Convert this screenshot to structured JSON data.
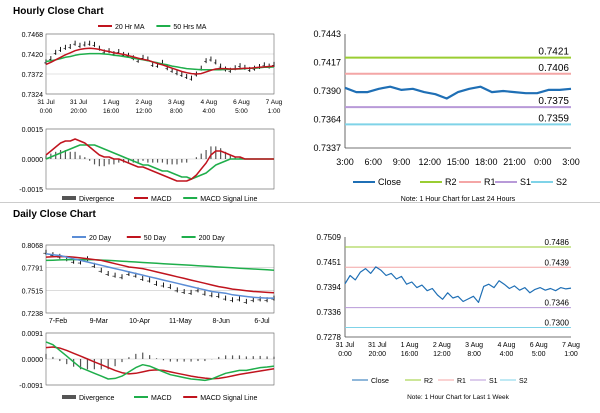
{
  "hourly": {
    "title": "Hourly Close Chart",
    "price_panel": {
      "legend": [
        "20 Hr MA",
        "50 Hrs MA"
      ],
      "y_ticks": [
        "0.7468",
        "0.7420",
        "0.7372",
        "0.7324"
      ],
      "ylim": [
        0.7324,
        0.7468
      ],
      "x_ticks": [
        [
          "31 Jul",
          "0:00"
        ],
        [
          "31 Jul",
          "20:00"
        ],
        [
          "1 Aug",
          "16:00"
        ],
        [
          "2 Aug",
          "12:00"
        ],
        [
          "3 Aug",
          "8:00"
        ],
        [
          "4 Aug",
          "4:00"
        ],
        [
          "6 Aug",
          "5:00"
        ],
        [
          "7 Aug",
          "1:00"
        ]
      ],
      "series": {
        "close": [
          0.7401,
          0.7409,
          0.7424,
          0.7431,
          0.7436,
          0.7438,
          0.7446,
          0.7441,
          0.7444,
          0.7446,
          0.7443,
          0.7434,
          0.7425,
          0.7428,
          0.7421,
          0.7426,
          0.7419,
          0.7417,
          0.7411,
          0.7405,
          0.7412,
          0.7408,
          0.7395,
          0.7393,
          0.74,
          0.7387,
          0.7381,
          0.7375,
          0.7371,
          0.7366,
          0.7362,
          0.7372,
          0.7386,
          0.7404,
          0.7408,
          0.7401,
          0.7391,
          0.7384,
          0.7381,
          0.7387,
          0.7392,
          0.7388,
          0.7383,
          0.7386,
          0.739,
          0.7394,
          0.7391,
          0.7395
        ],
        "ma20": [
          0.7395,
          0.74,
          0.7406,
          0.7412,
          0.7418,
          0.7423,
          0.7428,
          0.7431,
          0.7433,
          0.7434,
          0.7433,
          0.7431,
          0.7428,
          0.7426,
          0.7423,
          0.7421,
          0.7419,
          0.7416,
          0.7413,
          0.741,
          0.7407,
          0.7405,
          0.7401,
          0.7397,
          0.7394,
          0.739,
          0.7386,
          0.7382,
          0.7378,
          0.7375,
          0.7373,
          0.7372,
          0.7373,
          0.7377,
          0.7381,
          0.7384,
          0.7385,
          0.7385,
          0.7384,
          0.7384,
          0.7385,
          0.7386,
          0.7386,
          0.7387,
          0.7388,
          0.7389,
          0.739,
          0.7391
        ],
        "ma50": [
          0.7402,
          0.7404,
          0.7406,
          0.7409,
          0.7412,
          0.7414,
          0.7417,
          0.7419,
          0.742,
          0.7421,
          0.7421,
          0.7421,
          0.742,
          0.7419,
          0.7417,
          0.7416,
          0.7414,
          0.7412,
          0.741,
          0.7408,
          0.7406,
          0.7404,
          0.7401,
          0.7399,
          0.7396,
          0.7394,
          0.7391,
          0.7389,
          0.7387,
          0.7385,
          0.7384,
          0.7383,
          0.7382,
          0.7382,
          0.7382,
          0.7382,
          0.7382,
          0.7383,
          0.7383,
          0.7384,
          0.7384,
          0.7385,
          0.7386,
          0.7386,
          0.7387,
          0.7388,
          0.7388,
          0.7389
        ]
      }
    },
    "macd_panel": {
      "y_ticks": [
        "0.0015",
        "0.0000",
        "-0.0015"
      ],
      "ylim": [
        -0.0015,
        0.0015
      ],
      "legend": [
        "Divergence",
        "MACD",
        "MACD Signal Line"
      ],
      "series": {
        "macd": [
          0.0002,
          0.0004,
          0.0006,
          0.0008,
          0.0009,
          0.0009,
          0.001,
          0.0009,
          0.0008,
          0.0006,
          0.0004,
          0.0002,
          0.0001,
          0.0001,
          0.0,
          0.0,
          -0.0001,
          -0.0002,
          -0.0003,
          -0.0004,
          -0.0004,
          -0.0005,
          -0.0006,
          -0.0007,
          -0.0008,
          -0.0009,
          -0.001,
          -0.0011,
          -0.0011,
          -0.0011,
          -0.001,
          -0.0008,
          -0.0005,
          -0.0002,
          0.0002,
          0.0004,
          0.0004,
          0.0003,
          0.0002,
          0.0001,
          0.0001,
          0.0,
          0.0,
          0.0,
          0.0,
          0.0,
          0.0,
          0.0
        ],
        "signal": [
          0.0,
          0.0001,
          0.0002,
          0.0003,
          0.0004,
          0.0005,
          0.0006,
          0.0007,
          0.0007,
          0.0007,
          0.0007,
          0.0006,
          0.0005,
          0.0004,
          0.0003,
          0.0002,
          0.0001,
          0.0,
          -0.0001,
          -0.0002,
          -0.0003,
          -0.0003,
          -0.0004,
          -0.0005,
          -0.0006,
          -0.0006,
          -0.0007,
          -0.0008,
          -0.0009,
          -0.0009,
          -0.001,
          -0.0009,
          -0.0008,
          -0.0007,
          -0.0005,
          -0.0003,
          -0.0002,
          -0.0001,
          0.0,
          0.0,
          0.0,
          0.0,
          0.0,
          0.0,
          0.0,
          0.0,
          0.0,
          0.0
        ]
      }
    }
  },
  "hourly_zoom": {
    "y_ticks": [
      "0.7443",
      "0.7417",
      "0.7390",
      "0.7364",
      "0.7337"
    ],
    "ylim": [
      0.7337,
      0.7443
    ],
    "x_ticks": [
      "3:00",
      "6:00",
      "9:00",
      "12:00",
      "15:00",
      "18:00",
      "21:00",
      "0:00",
      "3:00"
    ],
    "levels": [
      {
        "name": "R2",
        "value": 0.7421,
        "label": "0.7421",
        "color": "#9acd32"
      },
      {
        "name": "R1",
        "value": 0.7406,
        "label": "0.7406",
        "color": "#f4a6a6"
      },
      {
        "name": "S1",
        "value": 0.7375,
        "label": "0.7375",
        "color": "#b89ad8"
      },
      {
        "name": "S2",
        "value": 0.7359,
        "label": "0.7359",
        "color": "#7fd3e8"
      }
    ],
    "close": [
      0.7393,
      0.7389,
      0.7389,
      0.7392,
      0.7394,
      0.7391,
      0.7392,
      0.7389,
      0.7387,
      0.7383,
      0.7389,
      0.7392,
      0.7394,
      0.7389,
      0.739,
      0.7389,
      0.7388,
      0.7388,
      0.7391,
      0.7391,
      0.7392
    ],
    "legend": [
      "Close",
      "R2",
      "R1",
      "S1",
      "S2"
    ],
    "note": "Note: 1 Hour Chart for Last 24 Hours"
  },
  "daily": {
    "title": "Daily Close Chart",
    "price_panel": {
      "legend": [
        "20 Day",
        "50 Day",
        "200 Day"
      ],
      "y_ticks": [
        "0.8068",
        "0.7791",
        "0.7515",
        "0.7238"
      ],
      "ylim": [
        0.7238,
        0.8068
      ],
      "x_ticks": [
        "7-Feb",
        "9-Mar",
        "10-Apr",
        "11-May",
        "8-Jun",
        "6-Jul"
      ],
      "series": {
        "close": [
          0.798,
          0.795,
          0.793,
          0.79,
          0.787,
          0.786,
          0.79,
          0.782,
          0.776,
          0.772,
          0.77,
          0.768,
          0.772,
          0.77,
          0.766,
          0.764,
          0.76,
          0.758,
          0.756,
          0.752,
          0.75,
          0.749,
          0.752,
          0.748,
          0.746,
          0.745,
          0.742,
          0.74,
          0.741,
          0.738,
          0.74,
          0.741,
          0.74,
          0.742
        ],
        "ma20": [
          0.796,
          0.795,
          0.794,
          0.792,
          0.79,
          0.788,
          0.786,
          0.784,
          0.782,
          0.78,
          0.778,
          0.776,
          0.774,
          0.772,
          0.77,
          0.768,
          0.766,
          0.764,
          0.762,
          0.76,
          0.758,
          0.756,
          0.754,
          0.752,
          0.75,
          0.749,
          0.748,
          0.746,
          0.745,
          0.744,
          0.743,
          0.7425,
          0.742,
          0.742
        ],
        "ma50": [
          0.792,
          0.7925,
          0.7928,
          0.7926,
          0.792,
          0.791,
          0.79,
          0.789,
          0.788,
          0.786,
          0.784,
          0.782,
          0.78,
          0.779,
          0.778,
          0.776,
          0.774,
          0.772,
          0.77,
          0.768,
          0.766,
          0.764,
          0.762,
          0.76,
          0.758,
          0.756,
          0.7545,
          0.753,
          0.752,
          0.751,
          0.75,
          0.7495,
          0.749,
          0.7485
        ],
        "ma200": [
          0.788,
          0.7883,
          0.7886,
          0.7888,
          0.789,
          0.789,
          0.7889,
          0.7887,
          0.7884,
          0.788,
          0.7875,
          0.787,
          0.7865,
          0.786,
          0.7855,
          0.785,
          0.7845,
          0.784,
          0.7835,
          0.783,
          0.7825,
          0.782,
          0.7815,
          0.781,
          0.7805,
          0.78,
          0.7795,
          0.779,
          0.7785,
          0.778,
          0.7775,
          0.777,
          0.7765,
          0.776
        ]
      }
    },
    "macd_panel": {
      "y_ticks": [
        "0.0091",
        "0.0000",
        "-0.0091"
      ],
      "ylim": [
        -0.0091,
        0.0091
      ],
      "legend": [
        "Divergence",
        "MACD",
        "MACD Signal Line"
      ],
      "series": {
        "macd": [
          0.006,
          0.005,
          0.003,
          0.001,
          -0.001,
          -0.003,
          -0.004,
          -0.005,
          -0.006,
          -0.007,
          -0.0068,
          -0.006,
          -0.0045,
          -0.003,
          -0.002,
          -0.0025,
          -0.0035,
          -0.0045,
          -0.0055,
          -0.006,
          -0.0065,
          -0.007,
          -0.0072,
          -0.0075,
          -0.007,
          -0.006,
          -0.005,
          -0.0045,
          -0.004,
          -0.004,
          -0.0035,
          -0.003,
          -0.0028,
          -0.0025
        ],
        "signal": [
          0.004,
          0.0042,
          0.0038,
          0.003,
          0.002,
          0.001,
          0.0,
          -0.001,
          -0.002,
          -0.003,
          -0.004,
          -0.0048,
          -0.0052,
          -0.005,
          -0.0045,
          -0.004,
          -0.0038,
          -0.004,
          -0.0045,
          -0.005,
          -0.0055,
          -0.006,
          -0.0064,
          -0.0067,
          -0.0069,
          -0.0068,
          -0.0064,
          -0.0059,
          -0.0054,
          -0.005,
          -0.0046,
          -0.0042,
          -0.0038,
          -0.0034
        ]
      }
    }
  },
  "weekly_zoom": {
    "y_ticks": [
      "0.7509",
      "0.7451",
      "0.7394",
      "0.7336",
      "0.7278"
    ],
    "ylim": [
      0.7278,
      0.7509
    ],
    "x_ticks": [
      [
        "31 Jul",
        "0:00"
      ],
      [
        "31 Jul",
        "20:00"
      ],
      [
        "1 Aug",
        "16:00"
      ],
      [
        "2 Aug",
        "12:00"
      ],
      [
        "3 Aug",
        "8:00"
      ],
      [
        "4 Aug",
        "4:00"
      ],
      [
        "6 Aug",
        "5:00"
      ],
      [
        "7 Aug",
        "1:00"
      ]
    ],
    "levels": [
      {
        "name": "R2",
        "value": 0.7486,
        "label": "0.7486",
        "color": "#9acd32"
      },
      {
        "name": "R1",
        "value": 0.7439,
        "label": "0.7439",
        "color": "#f4a6a6"
      },
      {
        "name": "S1",
        "value": 0.7346,
        "label": "0.7346",
        "color": "#b89ad8"
      },
      {
        "name": "S2",
        "value": 0.73,
        "label": "0.7300",
        "color": "#7fd3e8"
      }
    ],
    "close": [
      0.7401,
      0.742,
      0.741,
      0.7428,
      0.7436,
      0.7425,
      0.744,
      0.7432,
      0.742,
      0.7425,
      0.7412,
      0.7418,
      0.74,
      0.7405,
      0.7392,
      0.7398,
      0.7385,
      0.739,
      0.7375,
      0.7365,
      0.738,
      0.7368,
      0.7372,
      0.736,
      0.7366,
      0.7372,
      0.7358,
      0.7395,
      0.74,
      0.7392,
      0.7408,
      0.74,
      0.739,
      0.7396,
      0.7386,
      0.7392,
      0.738,
      0.7388,
      0.7392,
      0.7386,
      0.739,
      0.7385,
      0.7392,
      0.7389,
      0.7391
    ],
    "legend": [
      "Close",
      "R2",
      "R1",
      "S1",
      "S2"
    ],
    "note": "Note: 1 Hour Chart for Last 1 Week"
  },
  "colors": {
    "close_dark": "#000000",
    "close_blue": "#1f6fb5",
    "ma_red": "#c0141e",
    "ma_green": "#1fae4b",
    "ma_blue": "#5b8dd6",
    "hist_gray": "#555555",
    "grid": "#c8c8c8"
  }
}
